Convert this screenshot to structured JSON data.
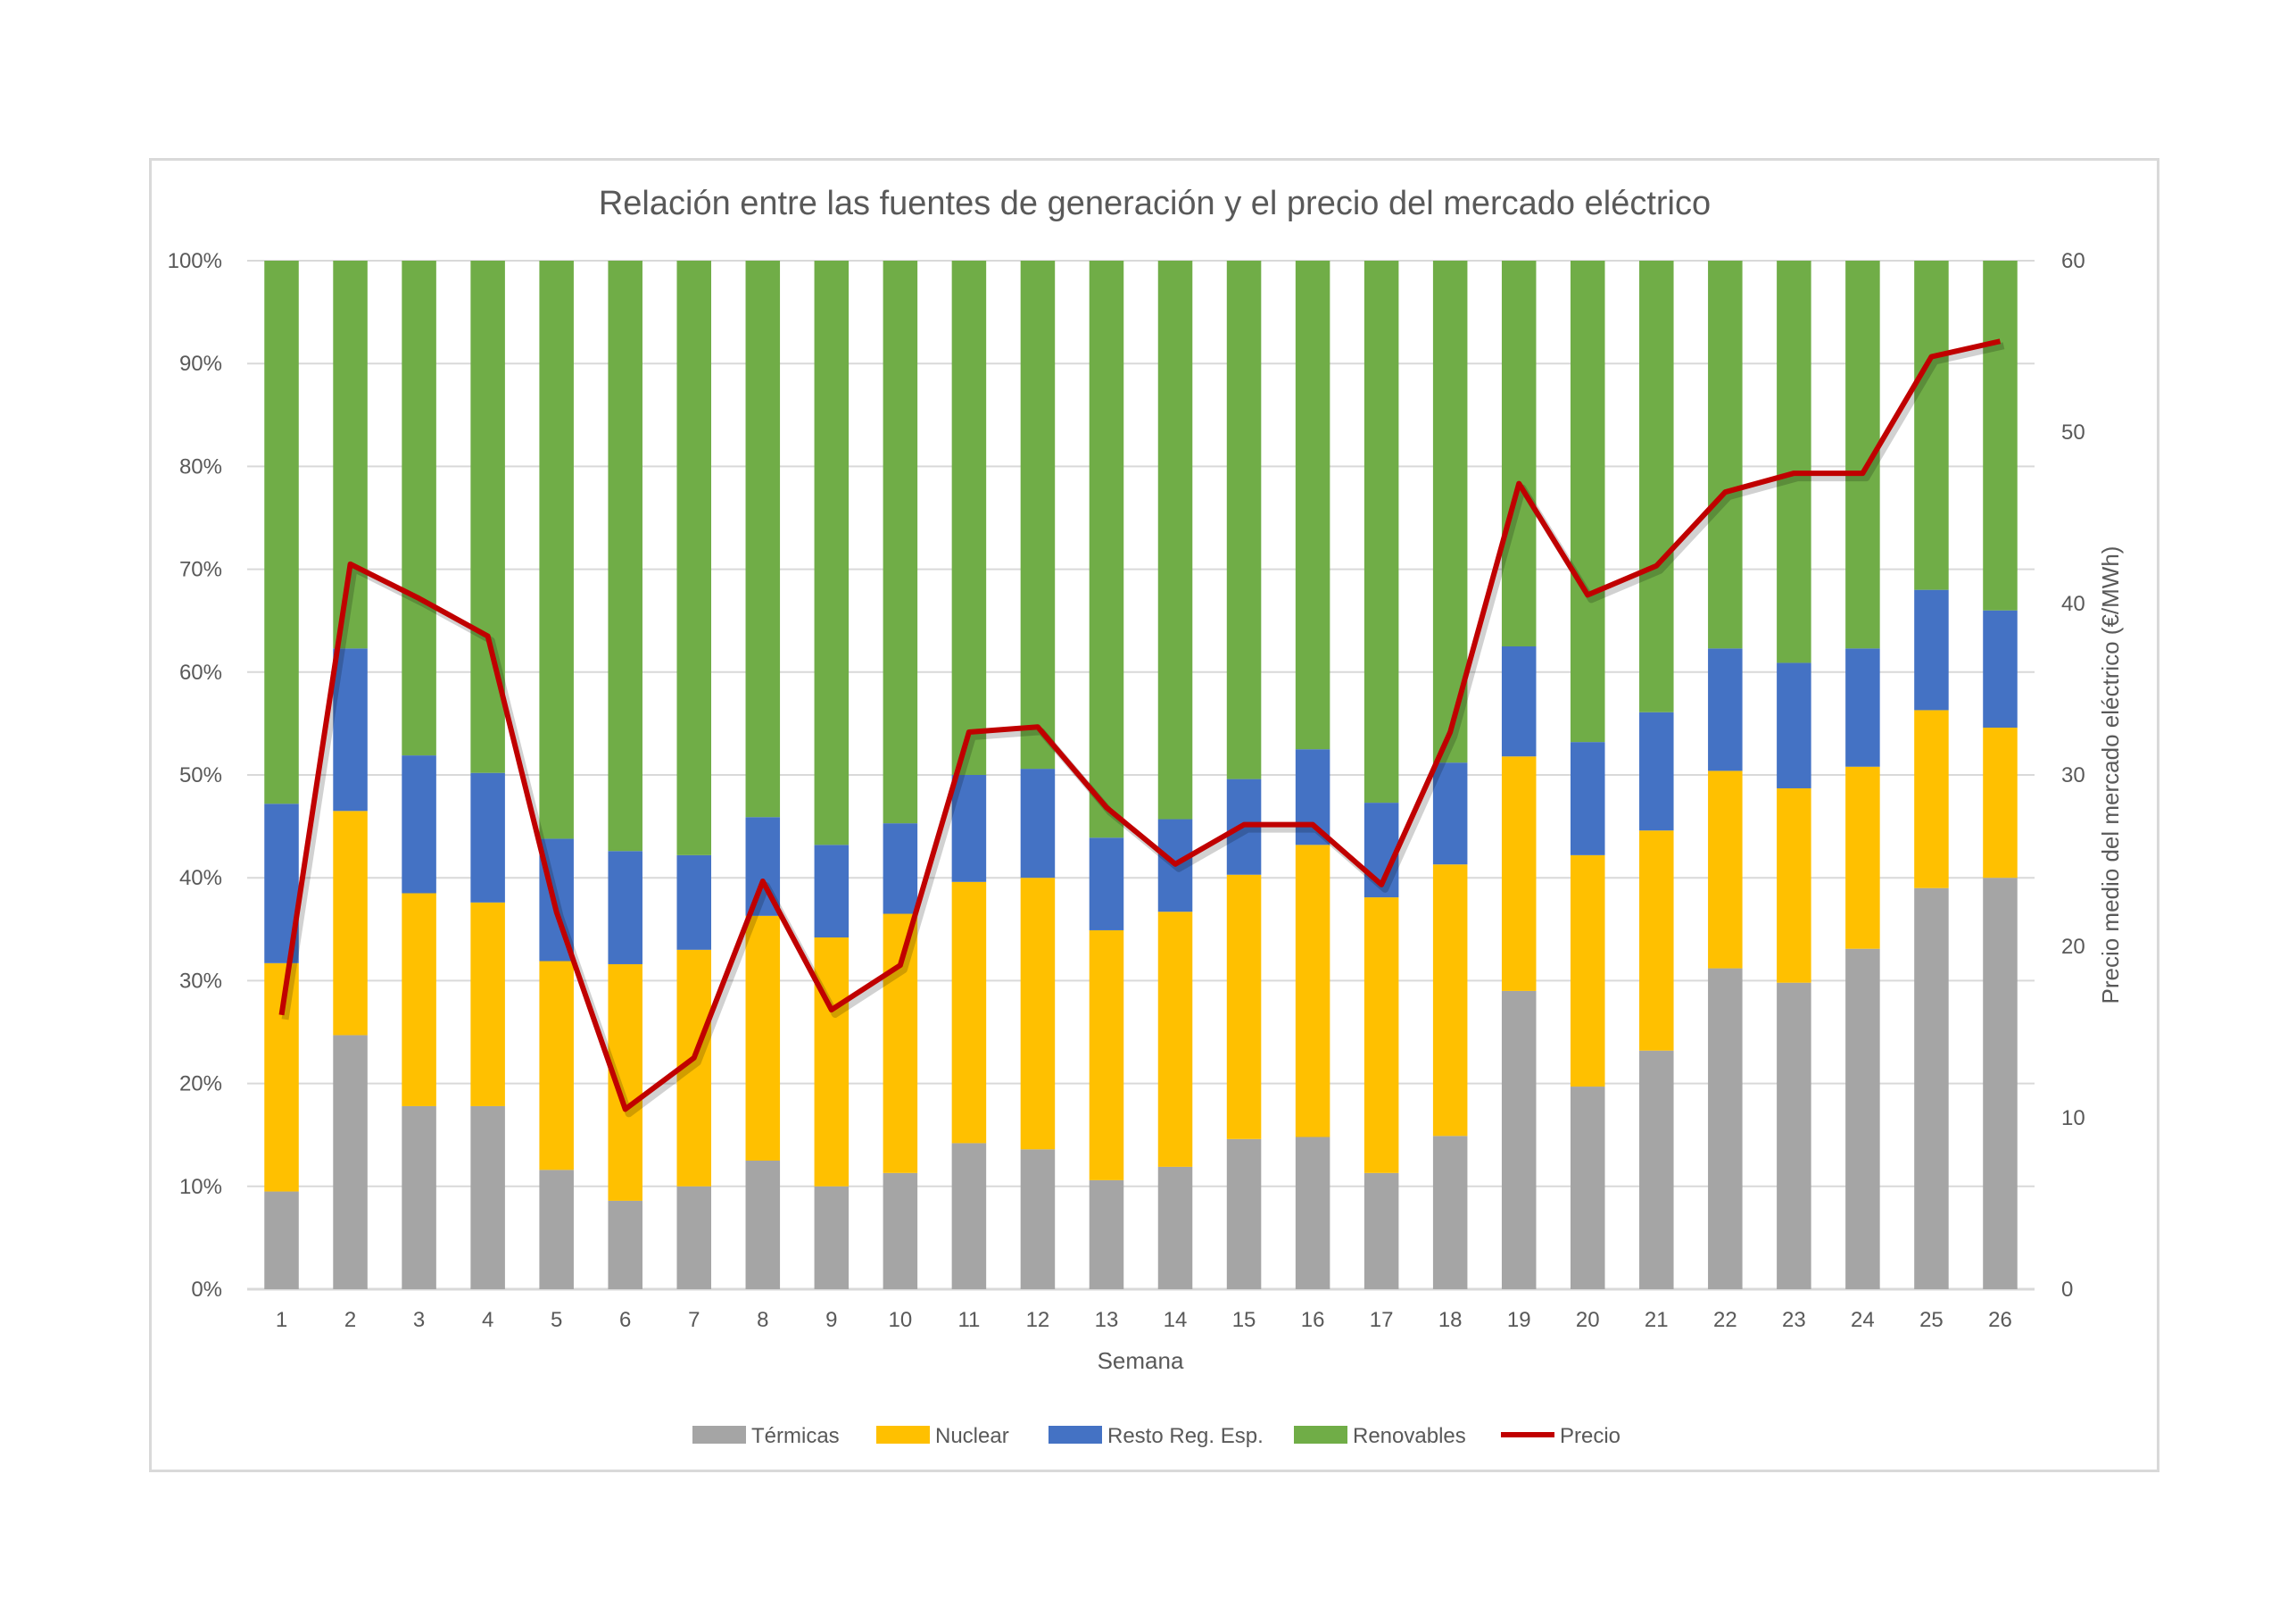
{
  "chart_data": {
    "type": "bar",
    "stacked": "percent",
    "title": "Relación entre las fuentes de generación y el precio del mercado eléctrico",
    "xlabel": "Semana",
    "ylabel_left": "",
    "ylabel_right": "Precio medio del mercado eléctrico (€/MWh)",
    "categories": [
      "1",
      "2",
      "3",
      "4",
      "5",
      "6",
      "7",
      "8",
      "9",
      "10",
      "11",
      "12",
      "13",
      "14",
      "15",
      "16",
      "17",
      "18",
      "19",
      "20",
      "21",
      "22",
      "23",
      "24",
      "25",
      "26"
    ],
    "ylim_left": [
      0,
      100
    ],
    "yticks_left": [
      "0%",
      "10%",
      "20%",
      "30%",
      "40%",
      "50%",
      "60%",
      "70%",
      "80%",
      "90%",
      "100%"
    ],
    "ylim_right": [
      0,
      60
    ],
    "yticks_right": [
      "0",
      "10",
      "20",
      "30",
      "40",
      "50",
      "60"
    ],
    "grid": true,
    "legend_position": "bottom",
    "series": [
      {
        "name": "Térmicas",
        "color": "#a5a5a5",
        "type": "bar",
        "values": [
          9.5,
          24.7,
          17.8,
          17.8,
          11.6,
          8.6,
          10,
          12.5,
          10,
          11.3,
          14.2,
          13.6,
          10.6,
          11.9,
          14.6,
          14.8,
          11.3,
          14.9,
          29,
          19.7,
          23.2,
          31.2,
          29.8,
          33.1,
          39,
          40
        ]
      },
      {
        "name": "Nuclear",
        "color": "#ffc000",
        "type": "bar",
        "values": [
          22.2,
          21.8,
          20.7,
          19.8,
          20.3,
          23,
          23,
          23.8,
          24.2,
          25.2,
          25.4,
          26.4,
          24.3,
          24.8,
          25.7,
          28.4,
          26.8,
          26.4,
          22.8,
          22.5,
          21.4,
          19.2,
          18.9,
          17.7,
          17.3,
          14.6
        ]
      },
      {
        "name": "Resto Reg. Esp.",
        "color": "#4472c4",
        "type": "bar",
        "values": [
          15.5,
          15.8,
          13.4,
          12.6,
          11.9,
          11,
          9.2,
          9.6,
          9,
          8.8,
          10.4,
          10.6,
          9,
          9,
          9.3,
          9.3,
          9.2,
          9.9,
          10.7,
          11,
          11.5,
          11.9,
          12.2,
          11.5,
          11.7,
          11.4
        ]
      },
      {
        "name": "Renovables",
        "color": "#70ad47",
        "type": "bar",
        "values": [
          52.8,
          37.7,
          48.1,
          49.8,
          56.2,
          57.4,
          57.8,
          54.1,
          56.8,
          54.7,
          50,
          49.4,
          56.1,
          54.3,
          50.4,
          47.5,
          52.7,
          48.8,
          37.5,
          46.8,
          43.9,
          37.7,
          39.1,
          37.7,
          32,
          34
        ]
      },
      {
        "name": "Precio",
        "color": "#c00000",
        "type": "line",
        "axis": "right",
        "values": [
          16,
          42.3,
          40.3,
          38.1,
          22,
          10.5,
          13.5,
          23.8,
          16.3,
          18.9,
          32.5,
          32.8,
          28.1,
          24.8,
          27.1,
          27.1,
          23.6,
          32.5,
          47,
          40.5,
          42.2,
          46.5,
          47.6,
          47.6,
          54.4,
          55.3
        ]
      }
    ]
  }
}
